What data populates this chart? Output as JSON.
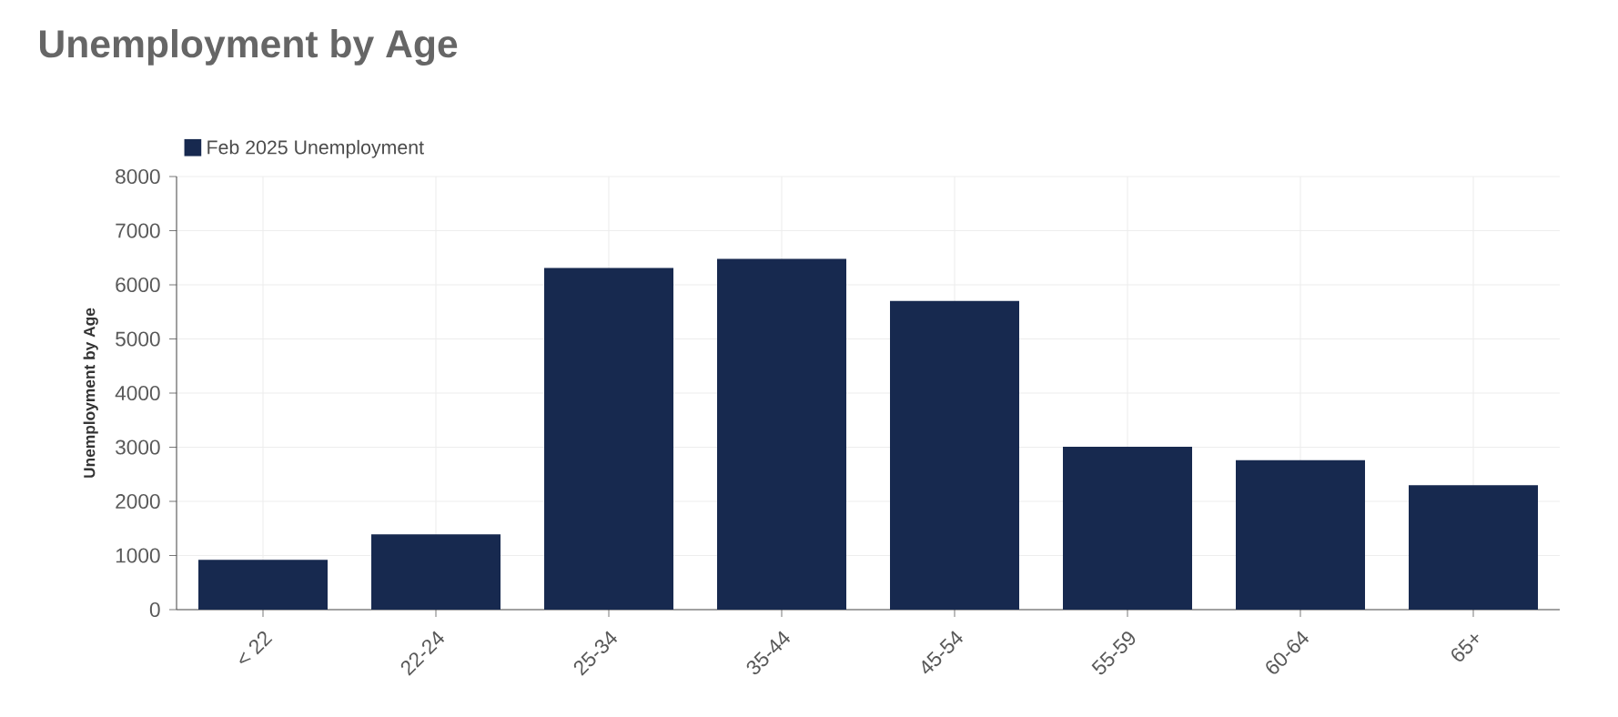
{
  "chart_data": {
    "type": "bar",
    "title": "Unemployment by Age",
    "ylabel": "Unemployment by Age",
    "categories": [
      "< 22",
      "22-24",
      "25-34",
      "35-44",
      "45-54",
      "55-59",
      "60-64",
      "65+"
    ],
    "series": [
      {
        "name": "Feb 2025 Unemployment",
        "color": "#17294f",
        "values": [
          920,
          1390,
          6310,
          6480,
          5700,
          3010,
          2760,
          2300
        ]
      }
    ],
    "ylim": [
      0,
      8000
    ],
    "yticks": [
      0,
      1000,
      2000,
      3000,
      4000,
      5000,
      6000,
      7000,
      8000
    ],
    "grid": true,
    "legend": "top left"
  }
}
